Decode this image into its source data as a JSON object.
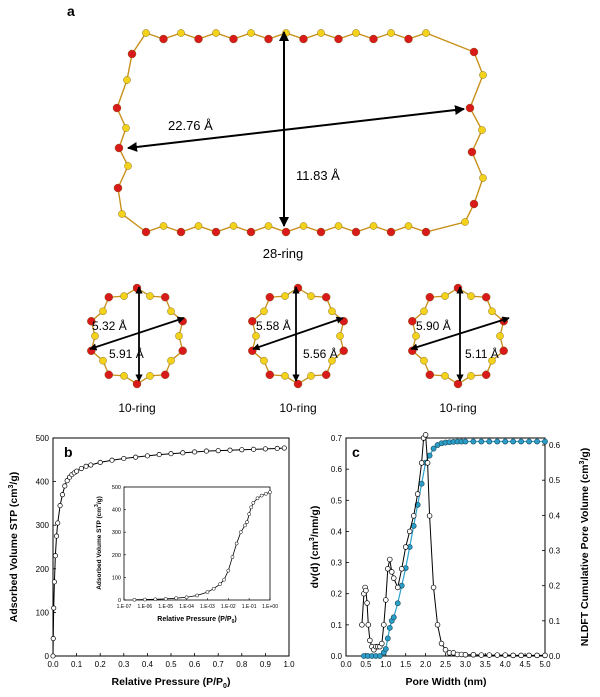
{
  "panel_labels": {
    "a": "a",
    "b": "b",
    "c": "c"
  },
  "colors": {
    "oxygen": "#d81a1a",
    "silicon": "#f2d21a",
    "bond": "#c8901a",
    "open_marker": "#ffffff",
    "cumulative_marker": "#2a9ec8",
    "cumulative_line": "#2aa0cc",
    "ink": "#000000"
  },
  "structures": {
    "large_ring": {
      "label": "28-ring",
      "long_axis": "22.76 Å",
      "short_axis": "11.83 Å"
    },
    "small_rings": [
      {
        "label": "10-ring",
        "diameter_1": "5.32 Å",
        "diameter_2": "5.91 Å"
      },
      {
        "label": "10-ring",
        "diameter_1": "5.58 Å",
        "diameter_2": "5.56 Å"
      },
      {
        "label": "10-ring",
        "diameter_1": "5.90 Å",
        "diameter_2": "5.11 Å"
      }
    ]
  },
  "chart_data": [
    {
      "id": "b",
      "type": "scatter",
      "title": "",
      "xlabel": "Relative Pressure (P/P",
      "xlabel_sub": "0",
      "xlabel_end": ")",
      "ylabel": "Adsorbed Volume STP (cm",
      "ylabel_sup": "3",
      "ylabel_end": "/g)",
      "xlim": [
        0,
        1.0
      ],
      "ylim": [
        0,
        500
      ],
      "xticks": [
        "0.0",
        "0.1",
        "0.2",
        "0.3",
        "0.4",
        "0.5",
        "0.6",
        "0.7",
        "0.8",
        "0.9",
        "1.0"
      ],
      "yticks": [
        "0",
        "100",
        "200",
        "300",
        "400",
        "500"
      ],
      "series": [
        {
          "name": "Adsorption/desorption isotherm",
          "x": [
            0.0,
            0.001,
            0.003,
            0.006,
            0.01,
            0.015,
            0.02,
            0.03,
            0.04,
            0.05,
            0.06,
            0.07,
            0.08,
            0.09,
            0.1,
            0.12,
            0.14,
            0.16,
            0.2,
            0.25,
            0.3,
            0.35,
            0.4,
            0.45,
            0.5,
            0.55,
            0.6,
            0.65,
            0.7,
            0.75,
            0.8,
            0.85,
            0.9,
            0.95,
            0.98
          ],
          "y": [
            0,
            40,
            110,
            170,
            230,
            275,
            305,
            345,
            370,
            390,
            402,
            410,
            416,
            420,
            424,
            430,
            435,
            438,
            444,
            449,
            453,
            456,
            459,
            462,
            464,
            466,
            468,
            470,
            471,
            472,
            473,
            474,
            475,
            476,
            477
          ]
        }
      ],
      "inset": {
        "xlabel": "Relative Pressure (P/P",
        "xlabel_sub": "0",
        "xlabel_end": ")",
        "ylabel": "Adsorbed Volume STP (cm",
        "ylabel_sup": "3",
        "ylabel_end": "/g)",
        "xscale": "log",
        "xlim_exp": [
          -7,
          0
        ],
        "xticks": [
          "1.E-07",
          "1.E-06",
          "1.E-05",
          "1.E-04",
          "1.E-03",
          "1.E-02",
          "1.E-01",
          "1.E+00"
        ],
        "ylim": [
          0,
          500
        ],
        "yticks": [
          "0",
          "100",
          "200",
          "300",
          "400",
          "500"
        ],
        "log10_x": [
          -6.5,
          -6.0,
          -5.5,
          -5.0,
          -4.5,
          -4.0,
          -3.5,
          -3.0,
          -2.7,
          -2.4,
          -2.2,
          -2.0,
          -1.8,
          -1.6,
          -1.4,
          -1.2,
          -1.1,
          -1.0,
          -0.9,
          -0.8,
          -0.6,
          -0.4,
          -0.2,
          0.0
        ],
        "y": [
          1,
          2,
          3,
          5,
          8,
          12,
          20,
          35,
          50,
          70,
          90,
          130,
          190,
          250,
          300,
          330,
          345,
          380,
          410,
          430,
          450,
          462,
          470,
          477
        ]
      }
    },
    {
      "id": "c",
      "type": "line",
      "title": "",
      "xlabel": "Pore Width (nm)",
      "ylabel": "dv(d) (cm",
      "ylabel_sup": "3",
      "ylabel_end": "/nm/g)",
      "ylabel_right": "NLDFT Cumulative Pore Volume (cm",
      "ylabel_right_sup": "3",
      "ylabel_right_end": "/g)",
      "xlim": [
        0,
        5.0
      ],
      "ylim": [
        0,
        0.7
      ],
      "y2lim": [
        0,
        0.62
      ],
      "xticks": [
        "0.0",
        "0.5",
        "1.0",
        "1.5",
        "2.0",
        "2.5",
        "3.0",
        "3.5",
        "4.0",
        "4.5",
        "5.0"
      ],
      "yticks": [
        "0.0",
        "0.1",
        "0.2",
        "0.3",
        "0.4",
        "0.5",
        "0.6",
        "0.7"
      ],
      "y2ticks": [
        "0.0",
        "0.1",
        "0.2",
        "0.3",
        "0.4",
        "0.5",
        "0.6"
      ],
      "series": [
        {
          "name": "dv(d)",
          "axis": "left",
          "x": [
            0.4,
            0.45,
            0.48,
            0.5,
            0.53,
            0.56,
            0.6,
            0.65,
            0.7,
            0.75,
            0.8,
            0.85,
            0.9,
            0.95,
            1.0,
            1.05,
            1.1,
            1.15,
            1.2,
            1.3,
            1.4,
            1.5,
            1.6,
            1.7,
            1.8,
            1.9,
            1.95,
            2.0,
            2.05,
            2.1,
            2.2,
            2.3,
            2.4,
            2.5,
            2.6,
            2.7,
            2.8,
            2.9,
            3.0,
            3.2,
            3.4,
            3.6,
            3.8,
            4.0,
            4.2,
            4.4,
            4.6,
            4.8,
            5.0
          ],
          "y": [
            0.1,
            0.2,
            0.22,
            0.21,
            0.17,
            0.1,
            0.05,
            0.03,
            0.02,
            0.03,
            0.03,
            0.03,
            0.04,
            0.1,
            0.18,
            0.28,
            0.31,
            0.27,
            0.25,
            0.22,
            0.28,
            0.35,
            0.4,
            0.45,
            0.52,
            0.62,
            0.7,
            0.71,
            0.62,
            0.45,
            0.22,
            0.1,
            0.04,
            0.02,
            0.01,
            0.01,
            0.005,
            0.005,
            0.004,
            0.004,
            0.003,
            0.003,
            0.003,
            0.003,
            0.002,
            0.002,
            0.002,
            0.002,
            0.002
          ]
        },
        {
          "name": "NLDFT cumulative pore volume",
          "axis": "right",
          "x": [
            0.45,
            0.55,
            0.65,
            0.75,
            0.85,
            0.95,
            1.0,
            1.05,
            1.1,
            1.15,
            1.2,
            1.3,
            1.4,
            1.5,
            1.6,
            1.7,
            1.8,
            1.9,
            2.0,
            2.1,
            2.2,
            2.3,
            2.4,
            2.5,
            2.6,
            2.7,
            2.8,
            2.9,
            3.0,
            3.2,
            3.4,
            3.6,
            3.8,
            4.0,
            4.2,
            4.4,
            4.6,
            4.8,
            5.0
          ],
          "y": [
            0.0,
            0.0,
            0.0,
            0.0,
            0.0,
            0.01,
            0.02,
            0.05,
            0.08,
            0.1,
            0.11,
            0.15,
            0.2,
            0.25,
            0.31,
            0.37,
            0.43,
            0.49,
            0.55,
            0.57,
            0.59,
            0.6,
            0.605,
            0.607,
            0.608,
            0.609,
            0.61,
            0.61,
            0.61,
            0.61,
            0.61,
            0.61,
            0.61,
            0.61,
            0.61,
            0.61,
            0.61,
            0.61,
            0.61
          ]
        }
      ]
    }
  ]
}
